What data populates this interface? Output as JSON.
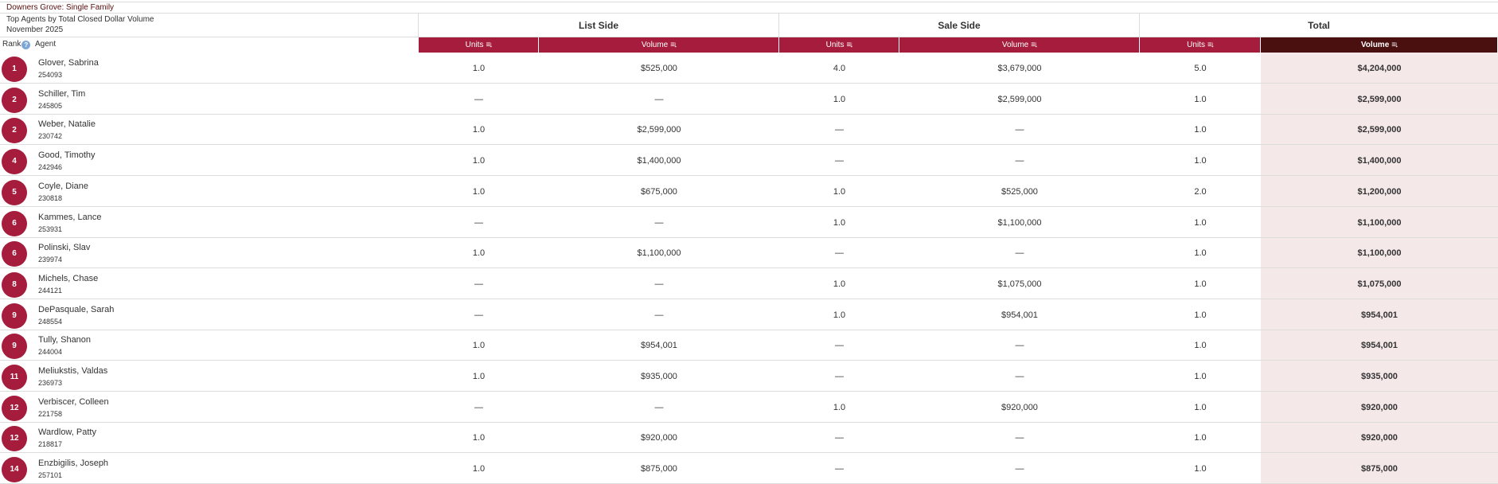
{
  "report": {
    "region": "Downers Grove: Single Family",
    "title": "Top Agents by Total Closed Dollar Volume",
    "period": "November 2025"
  },
  "groups": {
    "list_side": "List Side",
    "sale_side": "Sale Side",
    "total": "Total"
  },
  "columns": {
    "rank": "Rank",
    "agent": "Agent",
    "units": "Units",
    "volume": "Volume"
  },
  "icons": {
    "help": "help-icon",
    "sort": "sort-descending-icon"
  },
  "colors": {
    "accent": "#a61c3c",
    "active_header": "#4a0f0f",
    "total_column": "#f5e8e9",
    "region_text": "#5a0e0e"
  },
  "rows": [
    {
      "rank": "1",
      "name": "Glover, Sabrina",
      "id": "254093",
      "list_units": "1.0",
      "list_volume": "$525,000",
      "sale_units": "4.0",
      "sale_volume": "$3,679,000",
      "total_units": "5.0",
      "total_volume": "$4,204,000"
    },
    {
      "rank": "2",
      "name": "Schiller, Tim",
      "id": "245805",
      "list_units": "—",
      "list_volume": "—",
      "sale_units": "1.0",
      "sale_volume": "$2,599,000",
      "total_units": "1.0",
      "total_volume": "$2,599,000"
    },
    {
      "rank": "2",
      "name": "Weber, Natalie",
      "id": "230742",
      "list_units": "1.0",
      "list_volume": "$2,599,000",
      "sale_units": "—",
      "sale_volume": "—",
      "total_units": "1.0",
      "total_volume": "$2,599,000"
    },
    {
      "rank": "4",
      "name": "Good, Timothy",
      "id": "242946",
      "list_units": "1.0",
      "list_volume": "$1,400,000",
      "sale_units": "—",
      "sale_volume": "—",
      "total_units": "1.0",
      "total_volume": "$1,400,000"
    },
    {
      "rank": "5",
      "name": "Coyle, Diane",
      "id": "230818",
      "list_units": "1.0",
      "list_volume": "$675,000",
      "sale_units": "1.0",
      "sale_volume": "$525,000",
      "total_units": "2.0",
      "total_volume": "$1,200,000"
    },
    {
      "rank": "6",
      "name": "Kammes, Lance",
      "id": "253931",
      "list_units": "—",
      "list_volume": "—",
      "sale_units": "1.0",
      "sale_volume": "$1,100,000",
      "total_units": "1.0",
      "total_volume": "$1,100,000"
    },
    {
      "rank": "6",
      "name": "Polinski, Slav",
      "id": "239974",
      "list_units": "1.0",
      "list_volume": "$1,100,000",
      "sale_units": "—",
      "sale_volume": "—",
      "total_units": "1.0",
      "total_volume": "$1,100,000"
    },
    {
      "rank": "8",
      "name": "Michels, Chase",
      "id": "244121",
      "list_units": "—",
      "list_volume": "—",
      "sale_units": "1.0",
      "sale_volume": "$1,075,000",
      "total_units": "1.0",
      "total_volume": "$1,075,000"
    },
    {
      "rank": "9",
      "name": "DePasquale, Sarah",
      "id": "248554",
      "list_units": "—",
      "list_volume": "—",
      "sale_units": "1.0",
      "sale_volume": "$954,001",
      "total_units": "1.0",
      "total_volume": "$954,001"
    },
    {
      "rank": "9",
      "name": "Tully, Shanon",
      "id": "244004",
      "list_units": "1.0",
      "list_volume": "$954,001",
      "sale_units": "—",
      "sale_volume": "—",
      "total_units": "1.0",
      "total_volume": "$954,001"
    },
    {
      "rank": "11",
      "name": "Meliukstis, Valdas",
      "id": "236973",
      "list_units": "1.0",
      "list_volume": "$935,000",
      "sale_units": "—",
      "sale_volume": "—",
      "total_units": "1.0",
      "total_volume": "$935,000"
    },
    {
      "rank": "12",
      "name": "Verbiscer, Colleen",
      "id": "221758",
      "list_units": "—",
      "list_volume": "—",
      "sale_units": "1.0",
      "sale_volume": "$920,000",
      "total_units": "1.0",
      "total_volume": "$920,000"
    },
    {
      "rank": "12",
      "name": "Wardlow, Patty",
      "id": "218817",
      "list_units": "1.0",
      "list_volume": "$920,000",
      "sale_units": "—",
      "sale_volume": "—",
      "total_units": "1.0",
      "total_volume": "$920,000"
    },
    {
      "rank": "14",
      "name": "Enzbigilis, Joseph",
      "id": "257101",
      "list_units": "1.0",
      "list_volume": "$875,000",
      "sale_units": "—",
      "sale_volume": "—",
      "total_units": "1.0",
      "total_volume": "$875,000"
    }
  ]
}
